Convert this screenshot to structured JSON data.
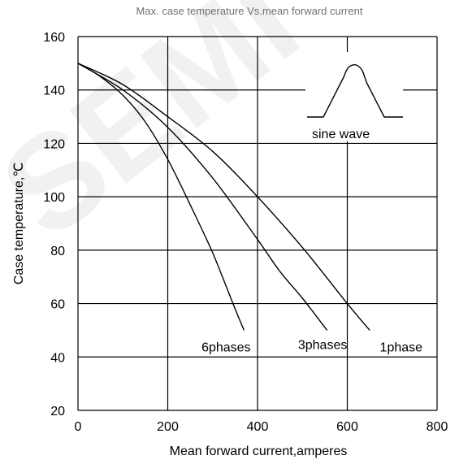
{
  "chart_data": {
    "type": "line",
    "title": "Max. case temperature  Vs.mean forward current",
    "xlabel": "Mean forward  current,amperes",
    "ylabel": "Case temperature,℃",
    "xlim": [
      0,
      800
    ],
    "ylim": [
      20,
      160
    ],
    "xticks": [
      0,
      200,
      400,
      600,
      800
    ],
    "yticks": [
      20,
      40,
      60,
      80,
      100,
      120,
      140,
      160
    ],
    "grid": true,
    "series": [
      {
        "name": "6phases",
        "x": [
          0,
          50,
          100,
          150,
          200,
          250,
          300,
          350,
          370
        ],
        "y": [
          150,
          145,
          138,
          128,
          114,
          97,
          79,
          58,
          50
        ],
        "label_at": [
          330,
          42
        ]
      },
      {
        "name": "3phases",
        "x": [
          0,
          100,
          200,
          300,
          400,
          450,
          500,
          555
        ],
        "y": [
          150,
          140,
          126,
          107,
          84,
          72,
          62,
          50
        ],
        "label_at": [
          545,
          43
        ]
      },
      {
        "name": "1phase",
        "x": [
          0,
          100,
          200,
          300,
          400,
          500,
          600,
          650
        ],
        "y": [
          150,
          142,
          130,
          117,
          100,
          81,
          60,
          50
        ],
        "label_at": [
          720,
          42
        ]
      }
    ],
    "annotation": {
      "text": "sine wave",
      "icon": "sine-half-wave-icon"
    },
    "watermark": "SEMI"
  }
}
